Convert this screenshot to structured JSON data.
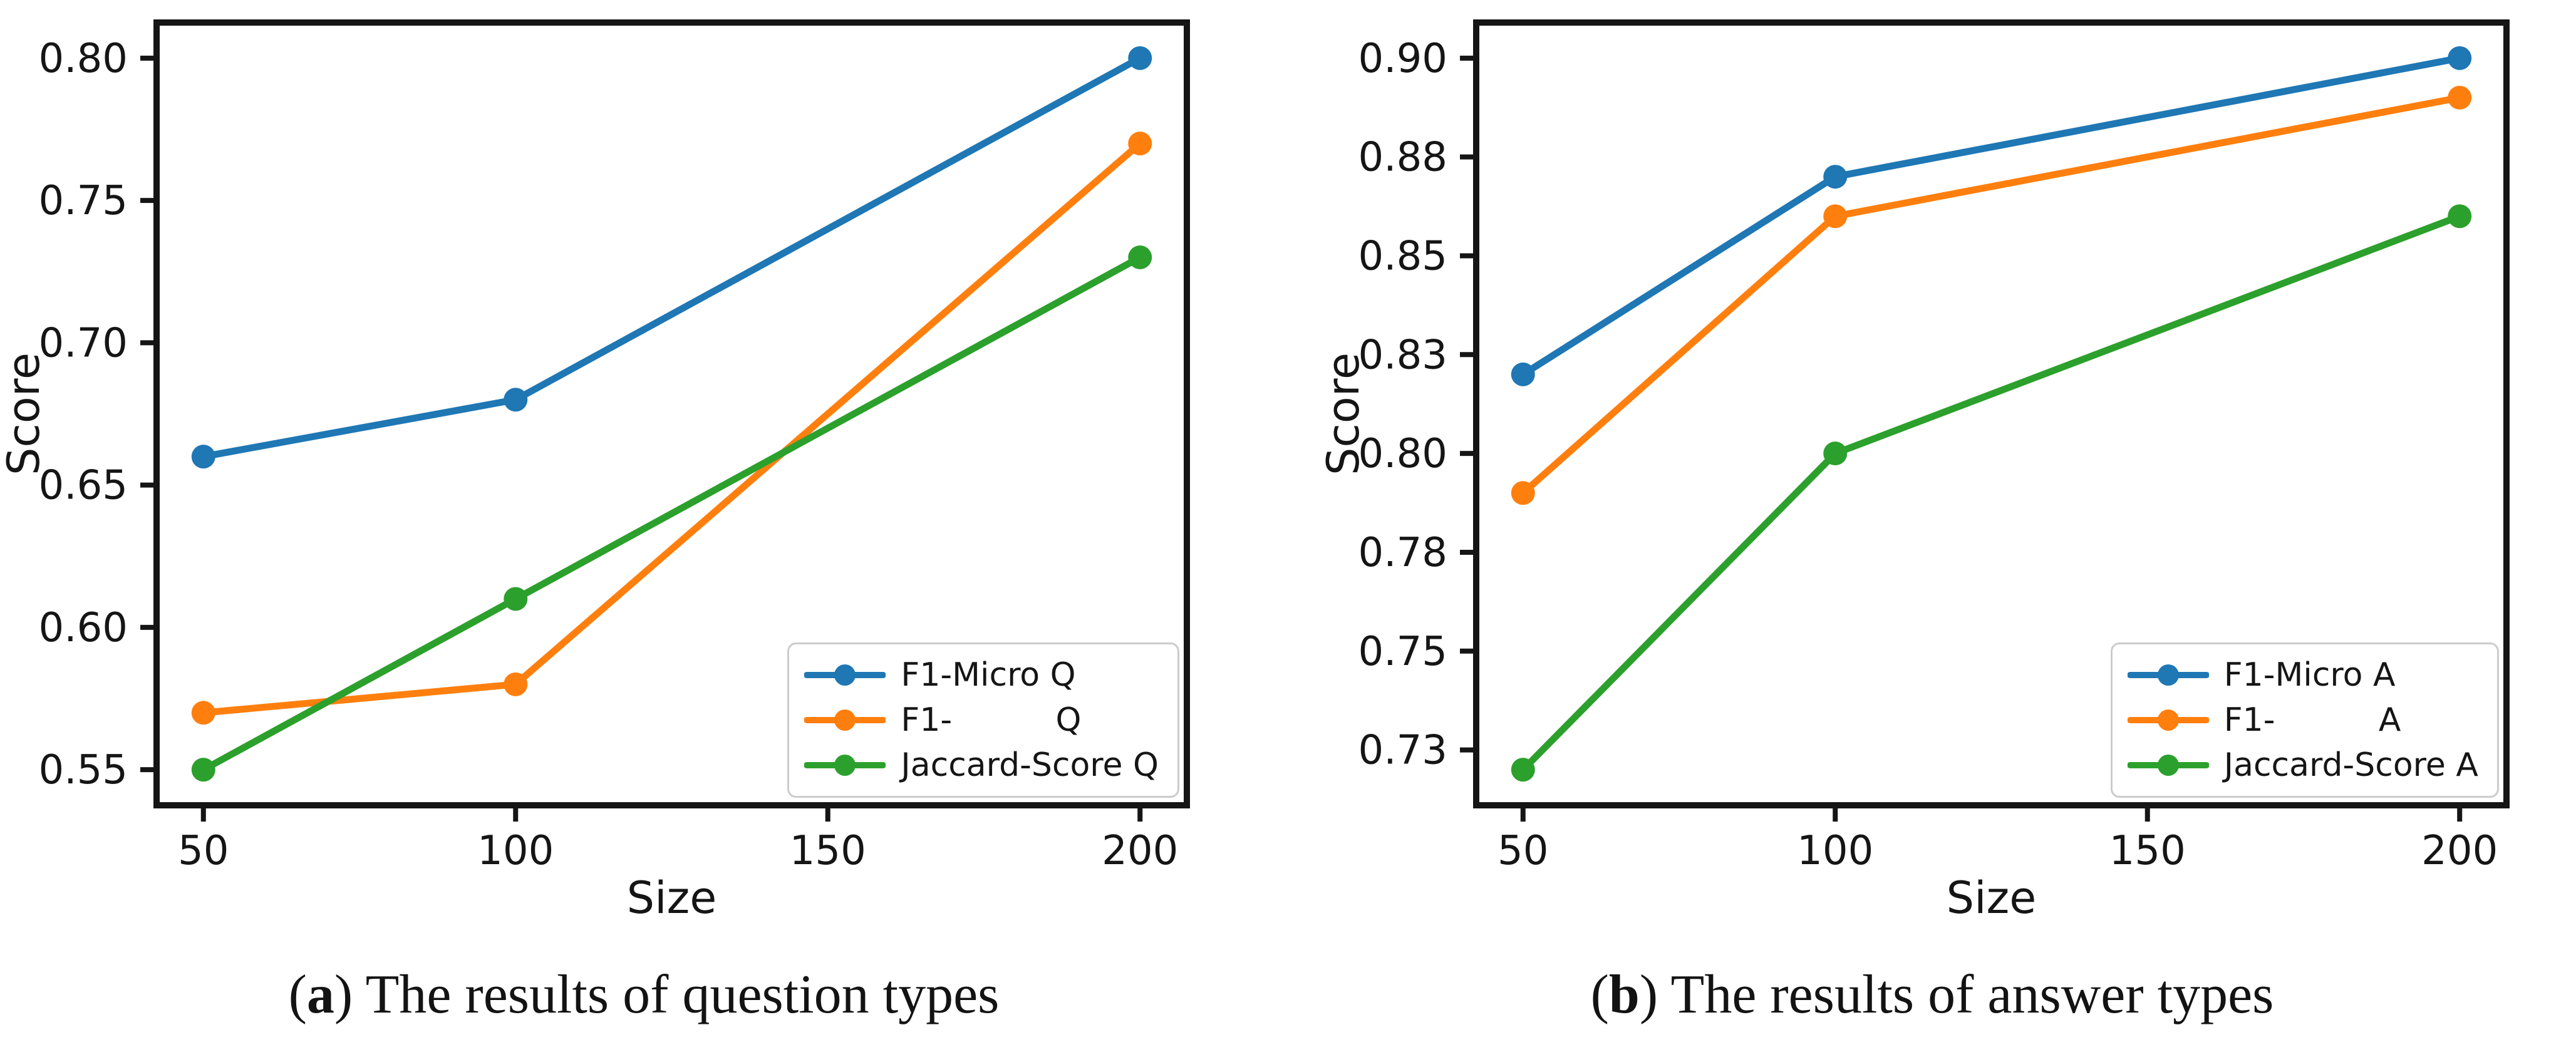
{
  "style": {
    "background": "#ffffff",
    "axis_color": "#151515",
    "text_color": "#151515",
    "legend_border_color": "#cccccc",
    "series_colors": {
      "blue": "#1f77b4",
      "orange": "#ff7f0e",
      "green": "#2ca02c"
    }
  },
  "chart_data": [
    {
      "type": "line",
      "title": "",
      "xlabel": "Size",
      "ylabel": "Score",
      "xlim": [
        42.5,
        207.5
      ],
      "ylim": [
        0.5375,
        0.8125
      ],
      "grid": false,
      "legend_position": "lower right",
      "x_ticks": [
        {
          "value": 50,
          "label": "50"
        },
        {
          "value": 100,
          "label": "100"
        },
        {
          "value": 150,
          "label": "150"
        },
        {
          "value": 200,
          "label": "200"
        }
      ],
      "y_ticks": [
        {
          "value": 0.55,
          "label": "0.55"
        },
        {
          "value": 0.6,
          "label": "0.60"
        },
        {
          "value": 0.65,
          "label": "0.65"
        },
        {
          "value": 0.7,
          "label": "0.70"
        },
        {
          "value": 0.75,
          "label": "0.75"
        },
        {
          "value": 0.8,
          "label": "0.80"
        }
      ],
      "x": [
        50,
        100,
        200
      ],
      "series": [
        {
          "name": "F1-Micro Q",
          "color": "#1f77b4",
          "values": [
            0.66,
            0.68,
            0.8
          ]
        },
        {
          "name": "F1-          Q",
          "color": "#ff7f0e",
          "values": [
            0.57,
            0.58,
            0.77
          ]
        },
        {
          "name": "Jaccard-Score Q",
          "color": "#2ca02c",
          "values": [
            0.55,
            0.61,
            0.73
          ]
        }
      ],
      "caption": {
        "open": "(",
        "letter": "a",
        "rest": ") The results of question types"
      }
    },
    {
      "type": "line",
      "title": "",
      "xlabel": "Size",
      "ylabel": "Score",
      "xlim": [
        42.5,
        207.5
      ],
      "ylim": [
        0.711,
        0.909
      ],
      "grid": false,
      "legend_position": "lower right",
      "x_ticks": [
        {
          "value": 50,
          "label": "50"
        },
        {
          "value": 100,
          "label": "100"
        },
        {
          "value": 150,
          "label": "150"
        },
        {
          "value": 200,
          "label": "200"
        }
      ],
      "y_ticks": [
        {
          "value": 0.725,
          "label": "0.73"
        },
        {
          "value": 0.75,
          "label": "0.75"
        },
        {
          "value": 0.775,
          "label": "0.78"
        },
        {
          "value": 0.8,
          "label": "0.80"
        },
        {
          "value": 0.825,
          "label": "0.83"
        },
        {
          "value": 0.85,
          "label": "0.85"
        },
        {
          "value": 0.875,
          "label": "0.88"
        },
        {
          "value": 0.9,
          "label": "0.90"
        }
      ],
      "x": [
        50,
        100,
        200
      ],
      "series": [
        {
          "name": "F1-Micro A",
          "color": "#1f77b4",
          "values": [
            0.82,
            0.87,
            0.9
          ]
        },
        {
          "name": "F1-          A",
          "color": "#ff7f0e",
          "values": [
            0.79,
            0.86,
            0.89
          ]
        },
        {
          "name": "Jaccard-Score A",
          "color": "#2ca02c",
          "values": [
            0.72,
            0.8,
            0.86
          ]
        }
      ],
      "caption": {
        "open": "(",
        "letter": "b",
        "rest": ") The results of answer types"
      }
    }
  ]
}
